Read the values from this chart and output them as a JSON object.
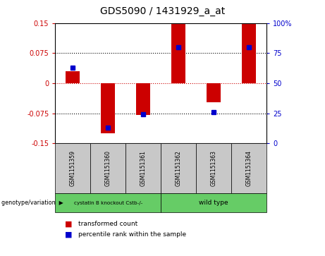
{
  "title": "GDS5090 / 1431929_a_at",
  "samples": [
    "GSM1151359",
    "GSM1151360",
    "GSM1151361",
    "GSM1151362",
    "GSM1151363",
    "GSM1151364"
  ],
  "red_values": [
    0.03,
    -0.125,
    -0.08,
    0.15,
    -0.048,
    0.15
  ],
  "blue_values_raw": [
    63,
    13,
    24,
    80,
    26,
    80
  ],
  "ylim_left": [
    -0.15,
    0.15
  ],
  "ylim_right": [
    0,
    100
  ],
  "yticks_left": [
    -0.15,
    -0.075,
    0,
    0.075,
    0.15
  ],
  "ytick_labels_left": [
    "-0.15",
    "-0.075",
    "0",
    "0.075",
    "0.15"
  ],
  "yticks_right": [
    0,
    25,
    50,
    75,
    100
  ],
  "ytick_labels_right": [
    "0",
    "25",
    "50",
    "75",
    "100%"
  ],
  "bar_color": "#CC0000",
  "dot_color": "#0000CC",
  "bar_width": 0.4,
  "plot_bg_color": "#ffffff",
  "zero_line_color": "#CC0000",
  "group1_label": "cystatin B knockout Cstb-/-",
  "group2_label": "wild type",
  "group_color": "#66CC66",
  "sample_box_color": "#C8C8C8",
  "genotype_label": "genotype/variation",
  "legend_items": [
    {
      "color": "#CC0000",
      "label": "transformed count"
    },
    {
      "color": "#0000CC",
      "label": "percentile rank within the sample"
    }
  ]
}
